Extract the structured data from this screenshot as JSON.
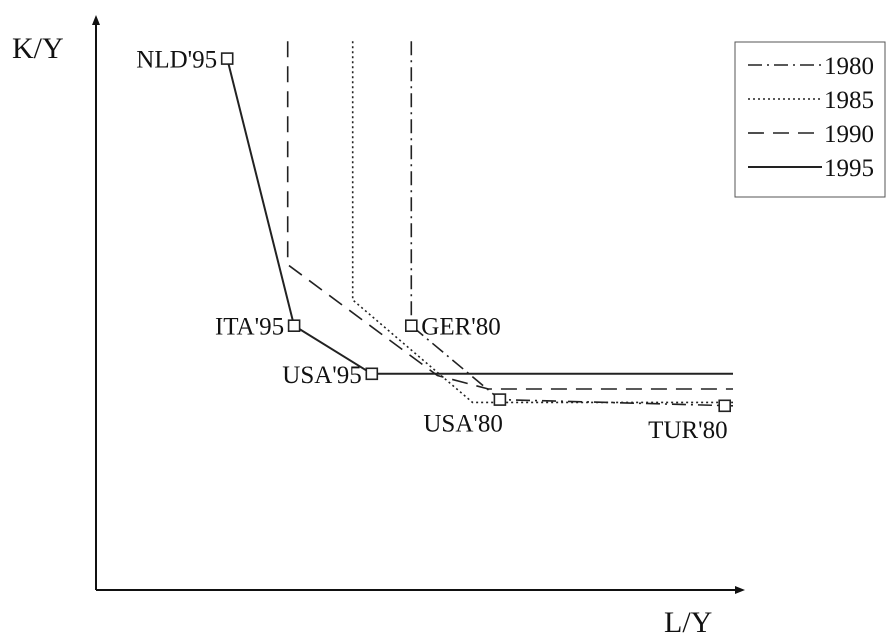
{
  "chart_data": {
    "type": "line",
    "xlabel": "L/Y",
    "ylabel": "K/Y",
    "xlim": [
      0,
      100
    ],
    "ylim": [
      0,
      100
    ],
    "grid": false,
    "legend_position": "top-right",
    "colors": {
      "stroke": "#222222",
      "marker": "#222222",
      "axis": "#111111"
    },
    "series": [
      {
        "name": "1980",
        "dash": "dash-dot",
        "values": [
          [
            49.5,
            98
          ],
          [
            49.5,
            47.2
          ],
          [
            63.4,
            34.0
          ],
          [
            100,
            32.9
          ]
        ]
      },
      {
        "name": "1985",
        "dash": "dotted",
        "values": [
          [
            40.3,
            98
          ],
          [
            40.3,
            51.8
          ],
          [
            59.1,
            33.5
          ],
          [
            100,
            33.5
          ]
        ]
      },
      {
        "name": "1990",
        "dash": "dashed",
        "values": [
          [
            30.1,
            98
          ],
          [
            30.1,
            58.1
          ],
          [
            53.6,
            38.3
          ],
          [
            61.6,
            35.9
          ],
          [
            100,
            35.9
          ]
        ]
      },
      {
        "name": "1995",
        "dash": "solid",
        "values": [
          [
            20.6,
            94.9
          ],
          [
            31.1,
            47.2
          ],
          [
            43.3,
            38.6
          ],
          [
            100,
            38.6
          ]
        ]
      }
    ],
    "points": [
      {
        "label": "NLD'95",
        "x": 20.6,
        "y": 94.9,
        "anchor": "left"
      },
      {
        "label": "ITA'95",
        "x": 31.1,
        "y": 47.2,
        "anchor": "left"
      },
      {
        "label": "GER'80",
        "x": 49.5,
        "y": 47.2,
        "anchor": "right"
      },
      {
        "label": "USA'95",
        "x": 43.3,
        "y": 38.6,
        "anchor": "left"
      },
      {
        "label": "USA'80",
        "x": 63.4,
        "y": 34.0,
        "anchor": "below"
      },
      {
        "label": "TUR'80",
        "x": 98.7,
        "y": 32.9,
        "anchor": "below"
      }
    ]
  }
}
